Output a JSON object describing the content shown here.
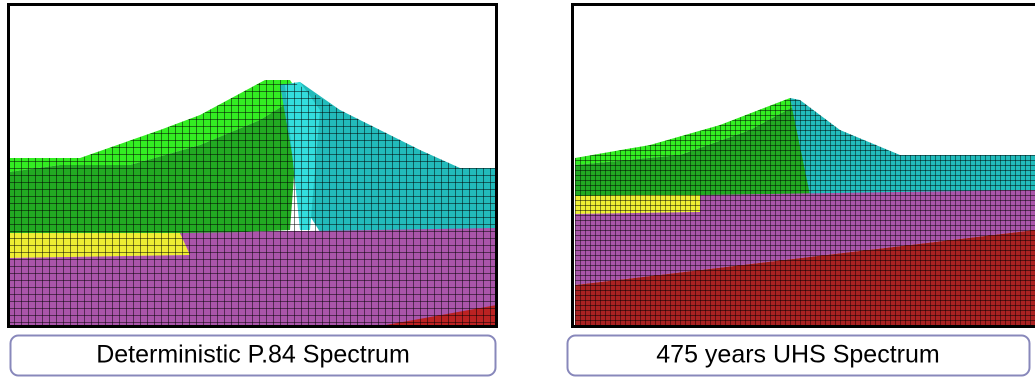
{
  "panels": [
    {
      "caption": "Deterministic P.84 Spectrum"
    },
    {
      "caption": "475 years UHS Spectrum"
    }
  ]
}
